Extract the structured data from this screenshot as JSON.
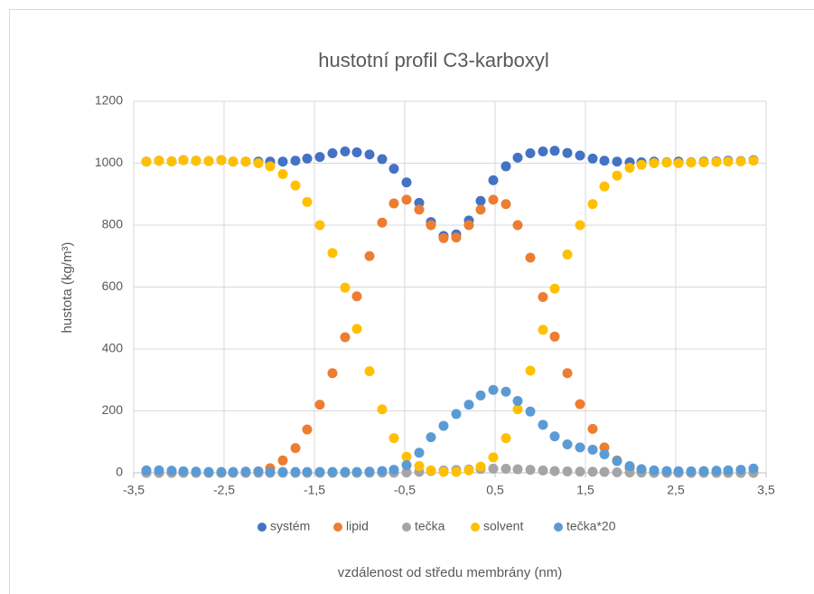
{
  "chart_data": {
    "type": "scatter",
    "title": "hustotní profil C3-karboxyl",
    "xlabel": "vzdálenost od středu membrány (nm)",
    "ylabel": "hustota (kg/m³)",
    "xlim": [
      -3.5,
      3.5
    ],
    "ylim": [
      0,
      1200
    ],
    "xticks": [
      {
        "value": -3.5,
        "label": "-3,5"
      },
      {
        "value": -2.5,
        "label": "-2,5"
      },
      {
        "value": -1.5,
        "label": "-1,5"
      },
      {
        "value": -0.5,
        "label": "-0,5"
      },
      {
        "value": 0.5,
        "label": "0,5"
      },
      {
        "value": 1.5,
        "label": "1,5"
      },
      {
        "value": 2.5,
        "label": "2,5"
      },
      {
        "value": 3.5,
        "label": "3,5"
      }
    ],
    "yticks": [
      0,
      200,
      400,
      600,
      800,
      1000,
      1200
    ],
    "grid": true,
    "legend": "bottom",
    "x": [
      -3.36,
      -3.22,
      -3.08,
      -2.95,
      -2.81,
      -2.67,
      -2.53,
      -2.4,
      -2.26,
      -2.12,
      -1.99,
      -1.85,
      -1.71,
      -1.58,
      -1.44,
      -1.3,
      -1.16,
      -1.03,
      -0.89,
      -0.75,
      -0.62,
      -0.48,
      -0.34,
      -0.21,
      -0.07,
      0.07,
      0.21,
      0.34,
      0.48,
      0.62,
      0.75,
      0.89,
      1.03,
      1.16,
      1.3,
      1.44,
      1.58,
      1.71,
      1.85,
      1.99,
      2.12,
      2.26,
      2.4,
      2.53,
      2.67,
      2.81,
      2.95,
      3.08,
      3.22,
      3.36
    ],
    "series": [
      {
        "name": "systém",
        "color": "#4472c4",
        "values": [
          1005,
          1008,
          1006,
          1010,
          1008,
          1007,
          1010,
          1005,
          1005,
          1005,
          1005,
          1005,
          1008,
          1015,
          1020,
          1032,
          1038,
          1035,
          1028,
          1013,
          982,
          938,
          872,
          810,
          765,
          770,
          815,
          878,
          945,
          990,
          1018,
          1032,
          1038,
          1040,
          1033,
          1025,
          1015,
          1008,
          1005,
          1003,
          1003,
          1005,
          1003,
          1005,
          1003,
          1005,
          1006,
          1008,
          1007,
          1010
        ]
      },
      {
        "name": "lipid",
        "color": "#ed7d31",
        "values": [
          0,
          0,
          0,
          0,
          0,
          0,
          0,
          0,
          0,
          5,
          15,
          40,
          80,
          140,
          220,
          322,
          438,
          570,
          700,
          808,
          870,
          882,
          850,
          800,
          758,
          760,
          800,
          850,
          882,
          868,
          800,
          695,
          568,
          440,
          322,
          222,
          142,
          82,
          40,
          15,
          5,
          0,
          0,
          0,
          0,
          0,
          0,
          0,
          0,
          0
        ]
      },
      {
        "name": "tečka",
        "color": "#a5a5a5",
        "values": [
          0.4,
          0.4,
          0.35,
          0.25,
          0.2,
          0.15,
          0.15,
          0.15,
          0.2,
          0.2,
          0.15,
          0.15,
          0.15,
          0.15,
          0.15,
          0.15,
          0.15,
          0.15,
          0.2,
          0.3,
          0.5,
          1.25,
          3.25,
          5.75,
          7.6,
          9.5,
          11,
          12.5,
          13.4,
          13.1,
          11.6,
          9.9,
          7.75,
          5.9,
          4.6,
          4.1,
          3.75,
          3,
          1.9,
          1.1,
          0.6,
          0.4,
          0.3,
          0.25,
          0.25,
          0.3,
          0.35,
          0.4,
          0.5,
          0.7
        ]
      },
      {
        "name": "solvent",
        "color": "#ffc000",
        "values": [
          1005,
          1008,
          1006,
          1010,
          1008,
          1007,
          1010,
          1005,
          1005,
          1000,
          990,
          965,
          928,
          875,
          800,
          710,
          598,
          465,
          328,
          205,
          112,
          52,
          22,
          8,
          3,
          3,
          8,
          20,
          50,
          112,
          205,
          330,
          462,
          595,
          705,
          800,
          868,
          925,
          960,
          985,
          995,
          1000,
          1002,
          1000,
          1002,
          1003,
          1004,
          1005,
          1006,
          1008
        ]
      },
      {
        "name": "tečka*20",
        "color": "#5b9bd5",
        "values": [
          8,
          8,
          7,
          5,
          4,
          3,
          3,
          3,
          4,
          4,
          3,
          3,
          3,
          3,
          3,
          3,
          3,
          3,
          4,
          6,
          10,
          25,
          65,
          115,
          152,
          190,
          220,
          250,
          268,
          262,
          232,
          198,
          155,
          118,
          92,
          82,
          75,
          60,
          38,
          22,
          12,
          8,
          6,
          5,
          5,
          6,
          7,
          8,
          10,
          14
        ]
      }
    ]
  }
}
